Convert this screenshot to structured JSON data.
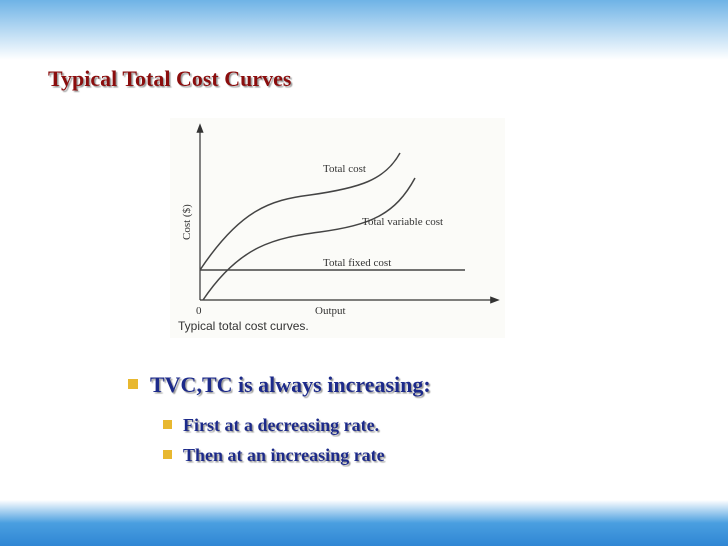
{
  "title": "Typical Total Cost Curves",
  "figure": {
    "y_axis_label": "Cost ($)",
    "origin_label": "0",
    "x_axis_label": "Output",
    "curves": [
      {
        "label": "Total cost"
      },
      {
        "label": "Total variable cost"
      },
      {
        "label": "Total fixed cost"
      }
    ],
    "caption": "Typical total cost curves."
  },
  "bullets": [
    {
      "text": "TVC,TC is always increasing:",
      "sub": [
        "First at a decreasing rate.",
        "Then at an increasing rate"
      ]
    }
  ]
}
